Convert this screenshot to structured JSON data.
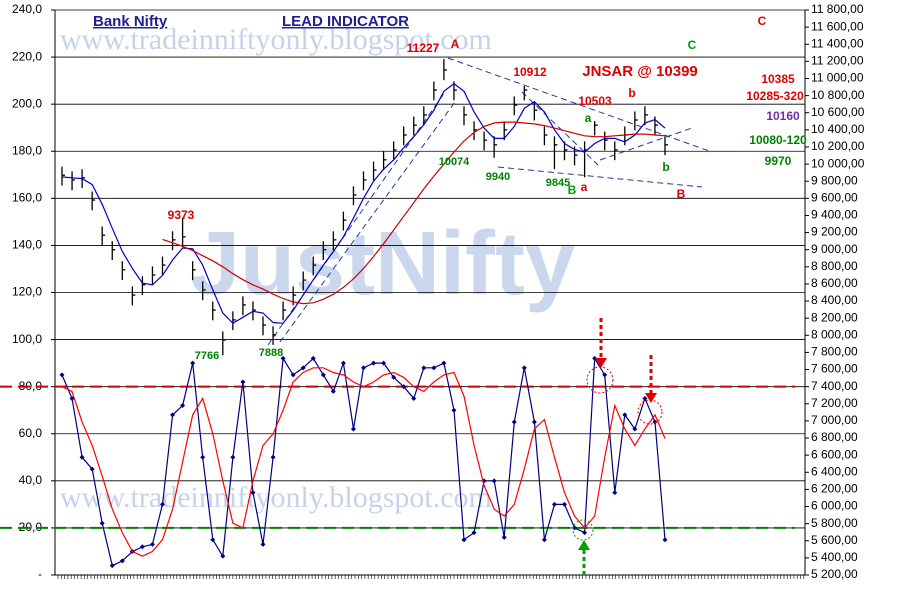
{
  "chart_data": {
    "type": "ohlc",
    "title": "Bank Nifty",
    "subtitle": "LEAD INDICATOR",
    "watermarks": [
      "www.tradeinniftyonly.blogspot.com",
      "www.tradeinniftyonly.blogspot.com",
      "JustNifty"
    ],
    "ylim": [
      0,
      240
    ],
    "yticks": [
      {
        "value": 0,
        "label": "-"
      },
      {
        "value": 20,
        "label": "20,0"
      },
      {
        "value": 40,
        "label": "40,0"
      },
      {
        "value": 60,
        "label": "60,0"
      },
      {
        "value": 80,
        "label": "80,0"
      },
      {
        "value": 100,
        "label": "100,0"
      },
      {
        "value": 120,
        "label": "120,0"
      },
      {
        "value": 140,
        "label": "140,0"
      },
      {
        "value": 160,
        "label": "160,0"
      },
      {
        "value": 180,
        "label": "180,0"
      },
      {
        "value": 200,
        "label": "200,0"
      },
      {
        "value": 220,
        "label": "220,0"
      },
      {
        "value": 240,
        "label": "240,0"
      }
    ],
    "y2lim": [
      5200,
      11800
    ],
    "y2ticks": [
      {
        "value": 5200,
        "label": "5 200,00"
      },
      {
        "value": 5400,
        "label": "5 400,00"
      },
      {
        "value": 5600,
        "label": "5 600,00"
      },
      {
        "value": 5800,
        "label": "5 800,00"
      },
      {
        "value": 6000,
        "label": "6 000,00"
      },
      {
        "value": 6200,
        "label": "6 200,00"
      },
      {
        "value": 6400,
        "label": "6 400,00"
      },
      {
        "value": 6600,
        "label": "6 600,00"
      },
      {
        "value": 6800,
        "label": "6 800,00"
      },
      {
        "value": 7000,
        "label": "7 000,00"
      },
      {
        "value": 7200,
        "label": "7 200,00"
      },
      {
        "value": 7400,
        "label": "7 400,00"
      },
      {
        "value": 7600,
        "label": "7 600,00"
      },
      {
        "value": 7800,
        "label": "7 800,00"
      },
      {
        "value": 8000,
        "label": "8 000,00"
      },
      {
        "value": 8200,
        "label": "8 200,00"
      },
      {
        "value": 8400,
        "label": "8 400,00"
      },
      {
        "value": 8600,
        "label": "8 600,00"
      },
      {
        "value": 8800,
        "label": "8 800,00"
      },
      {
        "value": 9000,
        "label": "9 000,00"
      },
      {
        "value": 9200,
        "label": "9 200,00"
      },
      {
        "value": 9400,
        "label": "9 400,00"
      },
      {
        "value": 9600,
        "label": "9 600,00"
      },
      {
        "value": 9800,
        "label": "9 800,00"
      },
      {
        "value": 10000,
        "label": "10 000,00"
      },
      {
        "value": 10200,
        "label": "10 200,00"
      },
      {
        "value": 10400,
        "label": "10 400,00"
      },
      {
        "value": 10600,
        "label": "10 600,00"
      },
      {
        "value": 10800,
        "label": "10 800,00"
      },
      {
        "value": 11000,
        "label": "11 000,00"
      },
      {
        "value": 11200,
        "label": "11 200,00"
      },
      {
        "value": 11400,
        "label": "11 400,00"
      },
      {
        "value": 11600,
        "label": "11 600,00"
      },
      {
        "value": 11800,
        "label": "11 800,00"
      }
    ],
    "grid": true,
    "hlines": [
      {
        "value": 80,
        "color": "#cc0000"
      },
      {
        "value": 20,
        "color": "#008000"
      }
    ],
    "series": [
      {
        "kind": "bars",
        "axis": "y2",
        "color": "#000000",
        "high": [
          9970,
          9915,
          9940,
          9680,
          9270,
          9100,
          8865,
          8570,
          8690,
          8805,
          8920,
          9215,
          9373,
          8865,
          8630,
          8395,
          8045,
          8280,
          8455,
          8395,
          8220,
          8105,
          8395,
          8570,
          8745,
          8920,
          9100,
          9215,
          9445,
          9740,
          9915,
          10030,
          10150,
          10265,
          10440,
          10555,
          10675,
          10965,
          11227,
          10965,
          10675,
          10500,
          10380,
          10325,
          10500,
          10790,
          10912,
          10730,
          10440,
          10325,
          10265,
          10205,
          10265,
          10503,
          10380,
          10265,
          10440,
          10615,
          10675,
          10555,
          10325
        ],
        "low": [
          9750,
          9695,
          9720,
          9460,
          9050,
          8880,
          8645,
          8350,
          8470,
          8585,
          8700,
          8995,
          9030,
          8645,
          8410,
          8175,
          7766,
          8060,
          8235,
          8175,
          8000,
          7888,
          8175,
          8350,
          8525,
          8700,
          8880,
          8995,
          9225,
          9520,
          9695,
          9810,
          9930,
          10045,
          10220,
          10335,
          10455,
          10745,
          10980,
          10745,
          10455,
          10280,
          10160,
          10074,
          10280,
          10570,
          10745,
          10510,
          10220,
          9940,
          10045,
          9985,
          9845,
          10335,
          10160,
          10045,
          10220,
          10395,
          10455,
          10335,
          10105
        ],
        "close": [
          9870,
          9815,
          9840,
          9580,
          9170,
          9000,
          8765,
          8470,
          8590,
          8705,
          8820,
          9115,
          9150,
          8765,
          8530,
          8295,
          7945,
          8180,
          8355,
          8295,
          8120,
          8005,
          8295,
          8470,
          8645,
          8820,
          9000,
          9115,
          9345,
          9640,
          9815,
          9930,
          10050,
          10165,
          10340,
          10455,
          10575,
          10865,
          11100,
          10865,
          10575,
          10400,
          10280,
          10225,
          10400,
          10690,
          10865,
          10630,
          10340,
          10225,
          10165,
          10105,
          10165,
          10455,
          10280,
          10165,
          10340,
          10515,
          10575,
          10455,
          10225
        ]
      },
      {
        "kind": "line",
        "axis": "y2",
        "color": "#0000cc",
        "values": [
          9850,
          9840,
          9830,
          9760,
          9530,
          9250,
          8980,
          8780,
          8610,
          8590,
          8700,
          8880,
          9020,
          9010,
          8820,
          8530,
          8260,
          8140,
          8210,
          8280,
          8260,
          8150,
          8140,
          8290,
          8470,
          8650,
          8820,
          8980,
          9150,
          9370,
          9600,
          9800,
          9940,
          10050,
          10190,
          10320,
          10460,
          10630,
          10850,
          10940,
          10850,
          10610,
          10420,
          10300,
          10300,
          10440,
          10650,
          10730,
          10610,
          10400,
          10240,
          10170,
          10140,
          10240,
          10300,
          10300,
          10260,
          10340,
          10480,
          10520,
          10420
        ]
      },
      {
        "kind": "line",
        "axis": "y2",
        "color": "#cc0000",
        "values": [
          null,
          null,
          null,
          null,
          null,
          null,
          null,
          null,
          null,
          null,
          9120,
          9080,
          9040,
          8990,
          8930,
          8870,
          8800,
          8720,
          8650,
          8590,
          8540,
          8480,
          8430,
          8390,
          8370,
          8380,
          8420,
          8480,
          8560,
          8660,
          8780,
          8920,
          9070,
          9230,
          9390,
          9550,
          9710,
          9860,
          10000,
          10140,
          10270,
          10370,
          10440,
          10480,
          10490,
          10490,
          10480,
          10470,
          10450,
          10420,
          10390,
          10360,
          10330,
          10320,
          10320,
          10330,
          10340,
          10350,
          10350,
          10340,
          10330
        ]
      },
      {
        "kind": "line",
        "axis": "y",
        "color": "#000080",
        "markers": true,
        "values": [
          85,
          75,
          50,
          45,
          22,
          4,
          6,
          10,
          12,
          13,
          30,
          68,
          72,
          90,
          50,
          15,
          8,
          50,
          82,
          35,
          13,
          50,
          92,
          85,
          88,
          92,
          85,
          78,
          90,
          62,
          88,
          90,
          90,
          84,
          80,
          75,
          88,
          88,
          90,
          70,
          15,
          18,
          40,
          40,
          16,
          65,
          88,
          65,
          15,
          30,
          30,
          20,
          18,
          92,
          85,
          35,
          68,
          62,
          75,
          65,
          15
        ]
      },
      {
        "kind": "line",
        "axis": "y",
        "color": "#ff0000",
        "values": [
          80,
          78,
          65,
          55,
          42,
          28,
          18,
          10,
          8,
          10,
          15,
          28,
          48,
          68,
          75,
          60,
          40,
          22,
          20,
          40,
          55,
          60,
          70,
          82,
          86,
          88,
          88,
          86,
          85,
          82,
          80,
          82,
          85,
          86,
          84,
          80,
          78,
          82,
          85,
          86,
          76,
          55,
          38,
          28,
          25,
          30,
          45,
          62,
          66,
          50,
          35,
          25,
          20,
          25,
          50,
          72,
          62,
          55,
          62,
          68,
          58
        ]
      }
    ],
    "annotations": [
      {
        "text": "11227",
        "color": "#dd0000"
      },
      {
        "text": "A",
        "color": "#dd0000"
      },
      {
        "text": "10912",
        "color": "#dd0000"
      },
      {
        "text": "JNSAR @ 10399",
        "color": "#dd0000"
      },
      {
        "text": "10385",
        "color": "#dd0000"
      },
      {
        "text": "10285-320",
        "color": "#dd0000"
      },
      {
        "text": "10160",
        "color": "#7030a0"
      },
      {
        "text": "10080-120",
        "color": "#008000"
      },
      {
        "text": "9970",
        "color": "#008000"
      },
      {
        "text": "10503",
        "color": "#dd0000"
      },
      {
        "text": "b",
        "color": "#dd0000"
      },
      {
        "text": "a",
        "color": "#008000"
      },
      {
        "text": "C",
        "color": "#dd0000"
      },
      {
        "text": "C",
        "color": "#00a000"
      },
      {
        "text": "10074",
        "color": "#008000"
      },
      {
        "text": "9940",
        "color": "#008000"
      },
      {
        "text": "9845",
        "color": "#008000"
      },
      {
        "text": "B",
        "color": "#00a000"
      },
      {
        "text": "a",
        "color": "#dd0000"
      },
      {
        "text": "B",
        "color": "#dd0000"
      },
      {
        "text": "b",
        "color": "#008000"
      },
      {
        "text": "9373",
        "color": "#dd0000"
      },
      {
        "text": "7766",
        "color": "#008000"
      },
      {
        "text": "7888",
        "color": "#008000"
      }
    ]
  }
}
